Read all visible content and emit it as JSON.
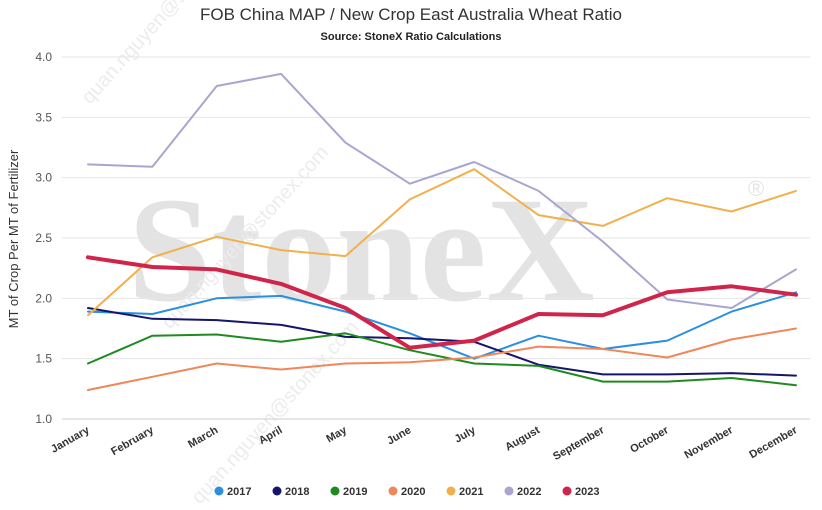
{
  "watermark": {
    "logo_text": "StoneX",
    "logo_mark": "®",
    "diagonal_text": "quan.nguyen@stonex.com"
  },
  "chart_data": {
    "type": "line",
    "title": "FOB China MAP / New Crop East Australia Wheat Ratio",
    "subtitle": "Source: StoneX Ratio Calculations",
    "ylabel": "MT of Crop Per MT of Fertilizer",
    "xlabel": "",
    "ylim": [
      1.0,
      4.0
    ],
    "yticks": [
      "1.0",
      "1.5",
      "2.0",
      "2.5",
      "3.0",
      "3.5",
      "4.0"
    ],
    "grid": true,
    "legend_position": "bottom",
    "categories": [
      "January",
      "February",
      "March",
      "April",
      "May",
      "June",
      "July",
      "August",
      "September",
      "October",
      "November",
      "December"
    ],
    "series": [
      {
        "name": "2017",
        "color": "#2b8fe0",
        "width": 2,
        "values": [
          1.89,
          1.87,
          2.0,
          2.02,
          1.89,
          1.71,
          1.5,
          1.69,
          1.58,
          1.65,
          1.89,
          2.05
        ]
      },
      {
        "name": "2018",
        "color": "#15156b",
        "width": 2,
        "values": [
          1.92,
          1.83,
          1.82,
          1.78,
          1.68,
          1.67,
          1.64,
          1.45,
          1.37,
          1.37,
          1.38,
          1.36
        ]
      },
      {
        "name": "2019",
        "color": "#1f8a1f",
        "width": 2,
        "values": [
          1.46,
          1.69,
          1.7,
          1.64,
          1.71,
          1.57,
          1.46,
          1.44,
          1.31,
          1.31,
          1.34,
          1.28
        ]
      },
      {
        "name": "2020",
        "color": "#f0875a",
        "width": 2,
        "values": [
          1.24,
          1.35,
          1.46,
          1.41,
          1.46,
          1.47,
          1.51,
          1.6,
          1.58,
          1.51,
          1.66,
          1.75
        ]
      },
      {
        "name": "2021",
        "color": "#f2b04c",
        "width": 2,
        "values": [
          1.86,
          2.34,
          2.51,
          2.4,
          2.35,
          2.82,
          3.07,
          2.69,
          2.6,
          2.83,
          2.72,
          2.89
        ]
      },
      {
        "name": "2022",
        "color": "#a8a6cf",
        "width": 2,
        "values": [
          3.11,
          3.09,
          3.76,
          3.86,
          3.29,
          2.95,
          3.13,
          2.89,
          2.47,
          1.99,
          1.92,
          2.24
        ]
      },
      {
        "name": "2023",
        "color": "#d0244b",
        "width": 4,
        "values": [
          2.34,
          2.26,
          2.24,
          2.12,
          1.92,
          1.59,
          1.65,
          1.87,
          1.86,
          2.05,
          2.1,
          2.03
        ]
      }
    ]
  }
}
